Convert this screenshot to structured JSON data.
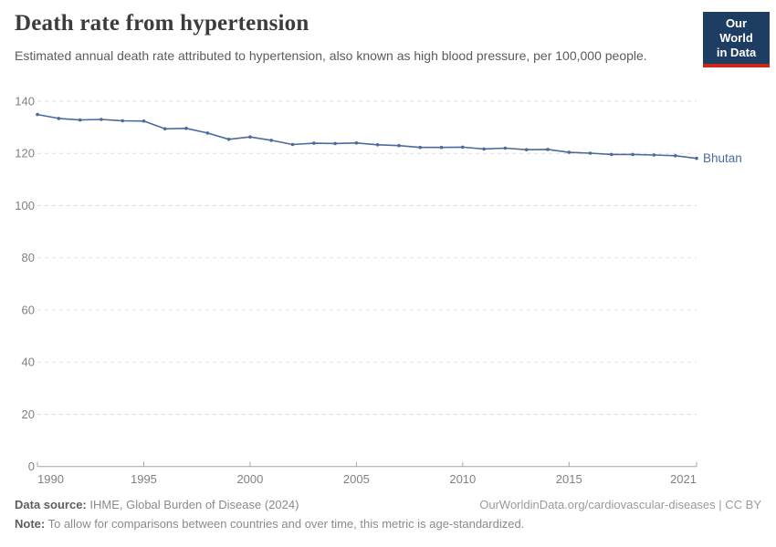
{
  "header": {
    "title": "Death rate from hypertension",
    "subtitle": "Estimated annual death rate attributed to hypertension, also known as high blood pressure, per 100,000 people.",
    "logo_line1": "Our World",
    "logo_line2": "in Data"
  },
  "chart_data": {
    "type": "line",
    "title": "Death rate from hypertension",
    "unit": "deaths per 100,000 people",
    "x": [
      1990,
      1991,
      1992,
      1993,
      1994,
      1995,
      1996,
      1997,
      1998,
      1999,
      2000,
      2001,
      2002,
      2003,
      2004,
      2005,
      2006,
      2007,
      2008,
      2009,
      2010,
      2011,
      2012,
      2013,
      2014,
      2015,
      2016,
      2017,
      2018,
      2019,
      2020,
      2021
    ],
    "series": [
      {
        "name": "Bhutan",
        "color": "#4C6A9C",
        "values": [
          134.9,
          133.4,
          132.8,
          133.0,
          132.5,
          132.4,
          129.4,
          129.6,
          127.8,
          125.4,
          126.3,
          125.0,
          123.4,
          123.9,
          123.8,
          124.0,
          123.3,
          123.0,
          122.3,
          122.3,
          122.4,
          121.7,
          122.0,
          121.4,
          121.5,
          120.4,
          120.1,
          119.6,
          119.6,
          119.4,
          119.1,
          118.1
        ]
      }
    ],
    "xlabel": "",
    "ylabel": "",
    "xlim": [
      1990,
      2021
    ],
    "ylim": [
      0,
      140
    ],
    "x_ticks": [
      1990,
      1995,
      2000,
      2005,
      2010,
      2015,
      2021
    ],
    "y_ticks": [
      0,
      20,
      40,
      60,
      80,
      100,
      120,
      140
    ],
    "grid": "horizontal dashed",
    "legend_position": "line-end label"
  },
  "footer": {
    "source_label": "Data source:",
    "source_text": "IHME, Global Burden of Disease (2024)",
    "attribution": "OurWorldinData.org/cardiovascular-diseases | CC BY",
    "note_label": "Note:",
    "note_text": "To allow for comparisons between countries and over time, this metric is age-standardized."
  },
  "colors": {
    "line": "#4C6A9C",
    "grid": "#DCDCDC",
    "axis": "#A3A3A3",
    "tick_label": "#808080",
    "title_text": "#3C3C3C",
    "subtitle_text": "#5B5B5B",
    "logo_bg": "#1D3D63",
    "logo_red": "#CE261B"
  }
}
